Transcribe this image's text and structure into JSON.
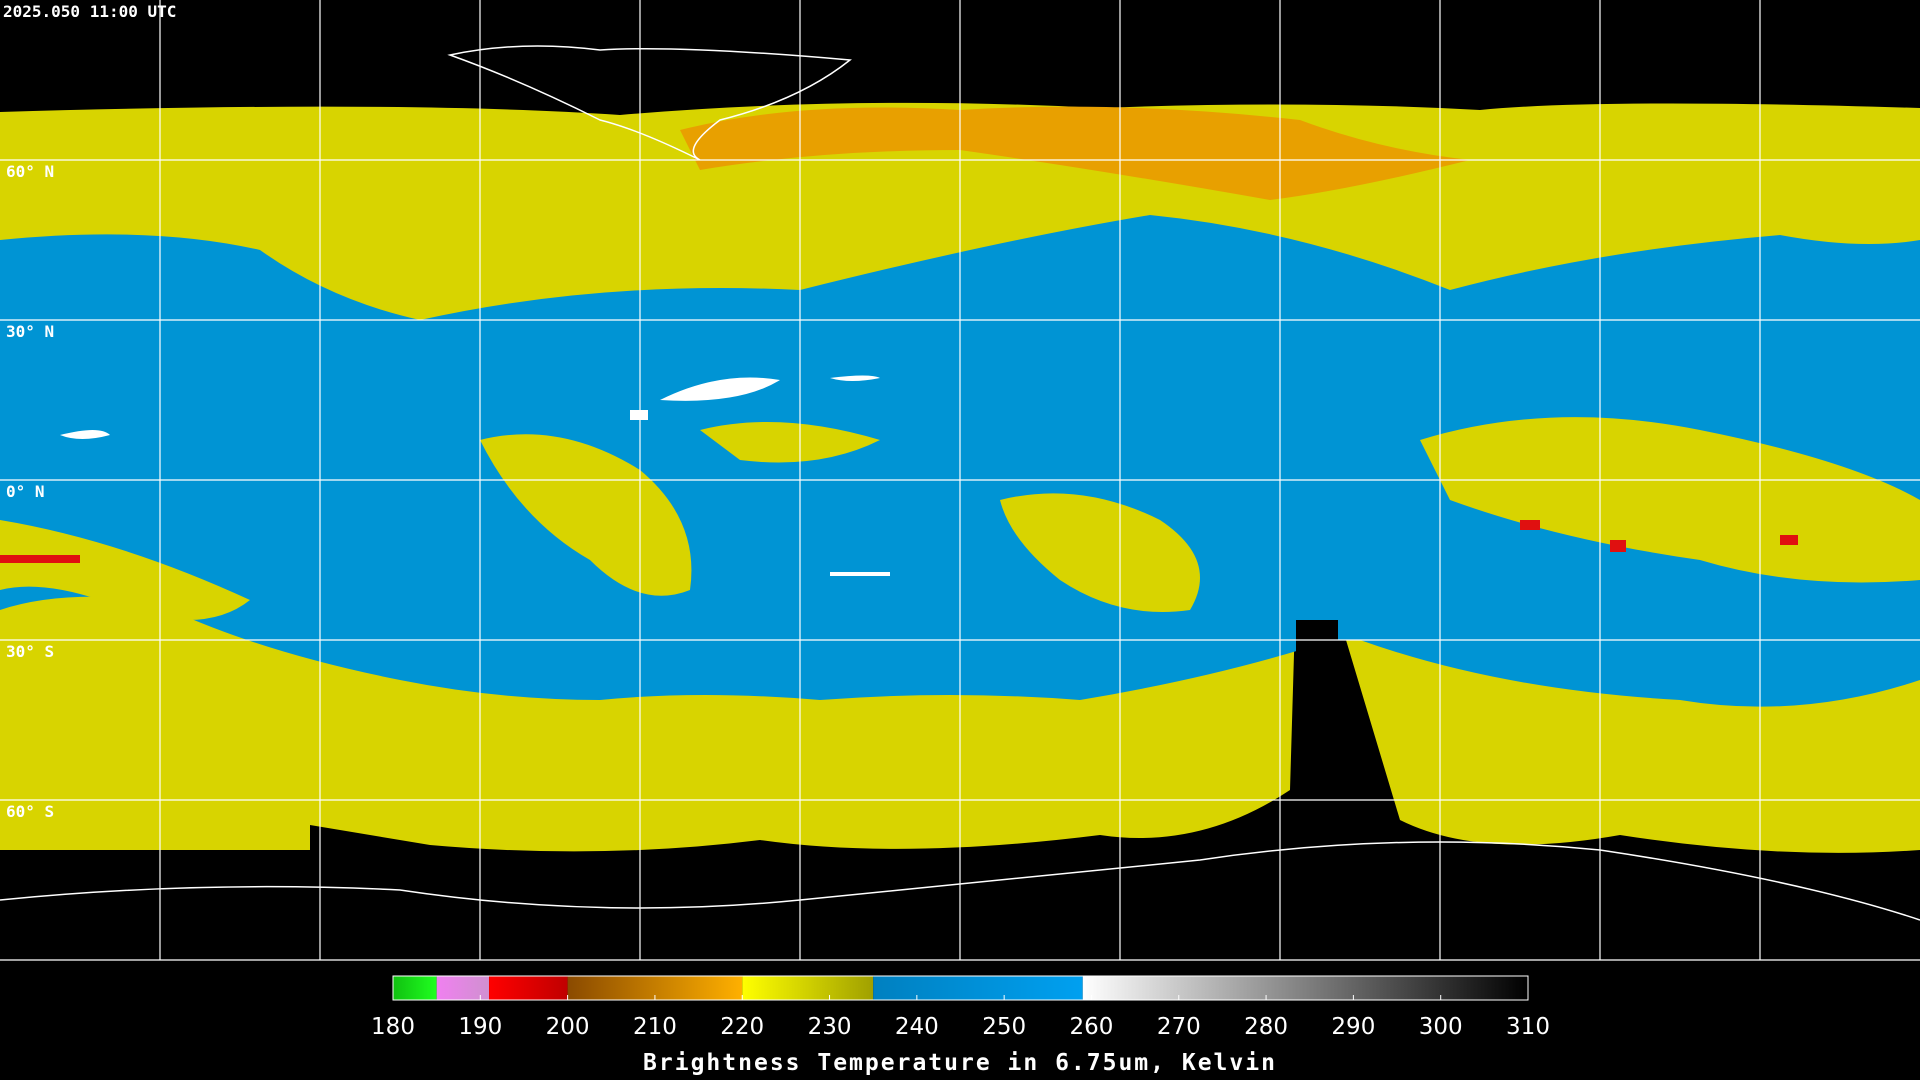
{
  "header": {
    "title": "2025.050 11:00 UTC"
  },
  "lat_labels": [
    "60° N",
    "30° N",
    "0° N",
    "30° S",
    "60° S"
  ],
  "colorbar": {
    "lim": [
      180,
      310
    ],
    "ticks": [
      180,
      190,
      200,
      210,
      220,
      230,
      240,
      250,
      260,
      270,
      280,
      290,
      300,
      310
    ],
    "label": "Brightness Temperature in 6.75um, Kelvin",
    "segments": [
      {
        "from": 180,
        "to": 185,
        "colors": [
          "#10c010",
          "#20ff20"
        ]
      },
      {
        "from": 185,
        "to": 191,
        "colors": [
          "#f080f0",
          "#d090d0"
        ]
      },
      {
        "from": 191,
        "to": 200,
        "colors": [
          "#ff0000",
          "#c00000"
        ]
      },
      {
        "from": 200,
        "to": 220,
        "colors": [
          "#8a4a00",
          "#ffb000"
        ]
      },
      {
        "from": 220,
        "to": 235,
        "colors": [
          "#ffff00",
          "#a0a000"
        ]
      },
      {
        "from": 235,
        "to": 259,
        "colors": [
          "#0080c0",
          "#00a0f0"
        ]
      },
      {
        "from": 259,
        "to": 310,
        "colors": [
          "#ffffff",
          "#000000"
        ]
      }
    ]
  }
}
